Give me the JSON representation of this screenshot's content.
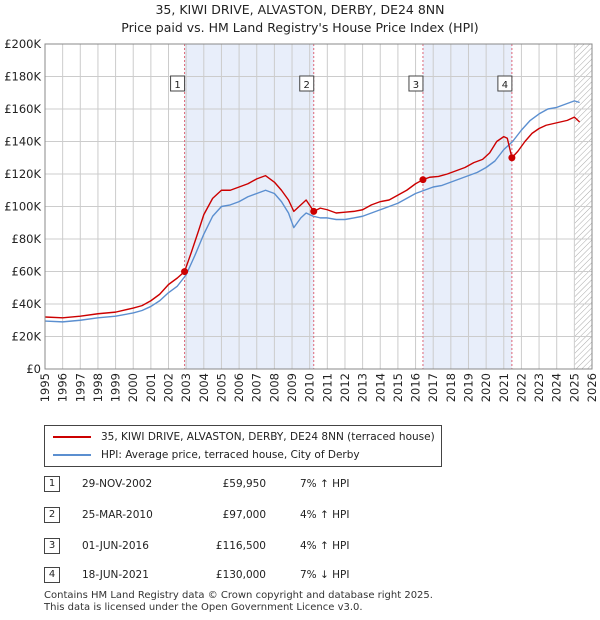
{
  "header": {
    "title_line1": "35, KIWI DRIVE, ALVASTON, DERBY, DE24 8NN",
    "title_line2": "Price paid vs. HM Land Registry's House Price Index (HPI)"
  },
  "chart_data": {
    "type": "line",
    "title": "35, KIWI DRIVE, ALVASTON, DERBY, DE24 8NN",
    "subtitle": "Price paid vs. HM Land Registry's House Price Index (HPI)",
    "xlim": [
      1995,
      2026
    ],
    "ylim": [
      0,
      200000
    ],
    "y_ticks": [
      0,
      20000,
      40000,
      60000,
      80000,
      100000,
      120000,
      140000,
      160000,
      180000,
      200000
    ],
    "y_tick_labels": [
      "£0",
      "£20K",
      "£40K",
      "£60K",
      "£80K",
      "£100K",
      "£120K",
      "£140K",
      "£160K",
      "£180K",
      "£200K"
    ],
    "x_ticks": [
      1995,
      1996,
      1997,
      1998,
      1999,
      2000,
      2001,
      2002,
      2003,
      2004,
      2005,
      2006,
      2007,
      2008,
      2009,
      2010,
      2011,
      2012,
      2013,
      2014,
      2015,
      2016,
      2017,
      2018,
      2019,
      2020,
      2021,
      2022,
      2023,
      2024,
      2025,
      2026
    ],
    "grid": true,
    "colors": {
      "price": "#cc0000",
      "hpi": "#5b8fd0",
      "shade": "#e8eefa",
      "marker_line": "#dd6677",
      "grid": "#cccccc",
      "future_hatch": "#aaaaaa"
    },
    "series": [
      {
        "name": "35, KIWI DRIVE, ALVASTON, DERBY, DE24 8NN (terraced house)",
        "color": "#cc0000",
        "x": [
          1995.0,
          1996.0,
          1997.0,
          1998.0,
          1999.0,
          2000.0,
          2000.5,
          2001.0,
          2001.5,
          2002.0,
          2002.5,
          2002.91,
          2003.3,
          2003.7,
          2004.0,
          2004.5,
          2005.0,
          2005.5,
          2006.0,
          2006.5,
          2007.0,
          2007.5,
          2008.0,
          2008.4,
          2008.8,
          2009.1,
          2009.5,
          2009.8,
          2010.23,
          2010.6,
          2011.0,
          2011.5,
          2012.0,
          2012.5,
          2013.0,
          2013.5,
          2014.0,
          2014.5,
          2015.0,
          2015.5,
          2016.0,
          2016.42,
          2016.8,
          2017.3,
          2017.8,
          2018.3,
          2018.8,
          2019.3,
          2019.8,
          2020.2,
          2020.6,
          2021.0,
          2021.2,
          2021.46,
          2021.8,
          2022.2,
          2022.6,
          2023.0,
          2023.4,
          2023.8,
          2024.2,
          2024.6,
          2025.0,
          2025.3
        ],
        "y": [
          32000,
          31500,
          32500,
          34000,
          35000,
          37500,
          39000,
          42000,
          46000,
          52000,
          56000,
          59950,
          72000,
          85000,
          95000,
          105000,
          110000,
          110000,
          112000,
          114000,
          117000,
          119000,
          115000,
          110000,
          104000,
          97000,
          101000,
          104000,
          97000,
          99000,
          98000,
          96000,
          96500,
          97000,
          98000,
          101000,
          103000,
          104000,
          107000,
          110000,
          114000,
          116500,
          118000,
          118500,
          120000,
          122000,
          124000,
          127000,
          129000,
          133000,
          140000,
          143000,
          142000,
          130000,
          134000,
          140000,
          145000,
          148000,
          150000,
          151000,
          152000,
          153000,
          155000,
          152000
        ]
      },
      {
        "name": "HPI: Average price, terraced house, City of Derby",
        "color": "#5b8fd0",
        "x": [
          1995.0,
          1996.0,
          1997.0,
          1998.0,
          1999.0,
          2000.0,
          2000.5,
          2001.0,
          2001.5,
          2002.0,
          2002.5,
          2003.0,
          2003.5,
          2004.0,
          2004.5,
          2005.0,
          2005.5,
          2006.0,
          2006.5,
          2007.0,
          2007.5,
          2008.0,
          2008.4,
          2008.8,
          2009.1,
          2009.5,
          2009.8,
          2010.2,
          2010.6,
          2011.0,
          2011.5,
          2012.0,
          2012.5,
          2013.0,
          2013.5,
          2014.0,
          2014.5,
          2015.0,
          2015.5,
          2016.0,
          2016.5,
          2017.0,
          2017.5,
          2018.0,
          2018.5,
          2019.0,
          2019.5,
          2020.0,
          2020.5,
          2021.0,
          2021.5,
          2022.0,
          2022.5,
          2023.0,
          2023.5,
          2024.0,
          2024.5,
          2025.0,
          2025.3
        ],
        "y": [
          29500,
          29000,
          30000,
          31500,
          32500,
          34500,
          36000,
          38500,
          42000,
          47000,
          51000,
          58000,
          70000,
          83000,
          94000,
          100000,
          101000,
          103000,
          106000,
          108000,
          110000,
          108000,
          103000,
          96000,
          87000,
          93000,
          96000,
          94000,
          93000,
          93000,
          92000,
          92000,
          93000,
          94000,
          96000,
          98000,
          100000,
          102000,
          105000,
          108000,
          110000,
          112000,
          113000,
          115000,
          117000,
          119000,
          121000,
          124000,
          128000,
          135000,
          140000,
          147000,
          153000,
          157000,
          160000,
          161000,
          163000,
          165000,
          164000
        ]
      }
    ],
    "annotations": [
      {
        "label": "1",
        "x": 2002.91,
        "y": 59950,
        "date": "29-NOV-2002",
        "price": "£59,950",
        "hpi": "7% ↑ HPI"
      },
      {
        "label": "2",
        "x": 2010.23,
        "y": 97000,
        "date": "25-MAR-2010",
        "price": "£97,000",
        "hpi": "4% ↑ HPI"
      },
      {
        "label": "3",
        "x": 2016.42,
        "y": 116500,
        "date": "01-JUN-2016",
        "price": "£116,500",
        "hpi": "4% ↑ HPI"
      },
      {
        "label": "4",
        "x": 2021.46,
        "y": 130000,
        "date": "18-JUN-2021",
        "price": "£130,000",
        "hpi": "7% ↓ HPI"
      }
    ],
    "shaded_ranges": [
      [
        2002.91,
        2010.23
      ],
      [
        2016.42,
        2021.46
      ]
    ],
    "future_from": 2025.0
  },
  "legend": {
    "price_label": "35, KIWI DRIVE, ALVASTON, DERBY, DE24 8NN (terraced house)",
    "hpi_label": "HPI: Average price, terraced house, City of Derby"
  },
  "transactions": [
    {
      "num": "1",
      "date": "29-NOV-2002",
      "price": "£59,950",
      "hpi": "7% ↑ HPI"
    },
    {
      "num": "2",
      "date": "25-MAR-2010",
      "price": "£97,000",
      "hpi": "4% ↑ HPI"
    },
    {
      "num": "3",
      "date": "01-JUN-2016",
      "price": "£116,500",
      "hpi": "4% ↑ HPI"
    },
    {
      "num": "4",
      "date": "18-JUN-2021",
      "price": "£130,000",
      "hpi": "7% ↓ HPI"
    }
  ],
  "footer": {
    "line1": "Contains HM Land Registry data © Crown copyright and database right 2025.",
    "line2": "This data is licensed under the Open Government Licence v3.0."
  }
}
